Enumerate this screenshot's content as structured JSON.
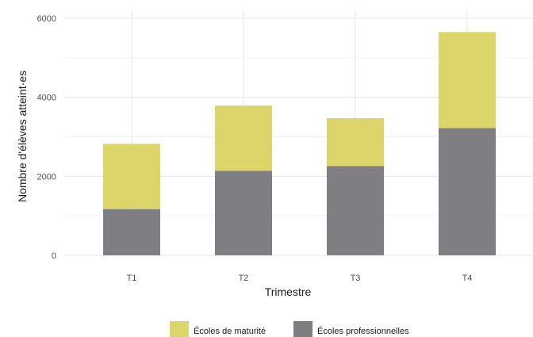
{
  "chart_data": {
    "type": "bar",
    "stacked": true,
    "categories": [
      "T1",
      "T2",
      "T3",
      "T4"
    ],
    "series": [
      {
        "name": "Écoles professionnelles",
        "values": [
          1170,
          2140,
          2260,
          3220
        ],
        "color": "#7f7f83"
      },
      {
        "name": "Écoles de maturité",
        "values": [
          1650,
          1650,
          1210,
          2430
        ],
        "color": "#dbd56a"
      }
    ],
    "xlabel": "Trimestre",
    "ylabel": "Nombre d'élèves atteint·es",
    "ylim": [
      0,
      6000
    ],
    "yticks": [
      0,
      2000,
      4000,
      6000
    ],
    "grid": true,
    "legend": {
      "position": "bottom",
      "items": [
        "Écoles de maturité",
        "Écoles professionnelles"
      ]
    }
  }
}
